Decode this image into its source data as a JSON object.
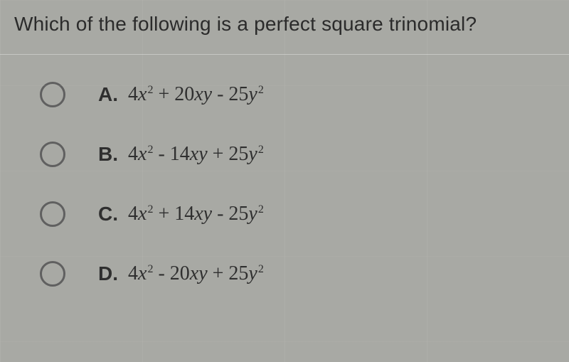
{
  "question": {
    "text": "Which of the following is a perfect square trinomial?",
    "font_size": 28,
    "text_color": "#2b2b2b"
  },
  "options": [
    {
      "letter": "A.",
      "coef1": "4",
      "var1": "x",
      "exp1": "2",
      "op1": " + ",
      "coef2": "20",
      "var2": "xy",
      "op2": " - ",
      "coef3": "25",
      "var3": "y",
      "exp3": "2",
      "selected": false
    },
    {
      "letter": "B.",
      "coef1": "4",
      "var1": "x",
      "exp1": "2",
      "op1": " - ",
      "coef2": "14",
      "var2": "xy",
      "op2": " + ",
      "coef3": "25",
      "var3": "y",
      "exp3": "2",
      "selected": false
    },
    {
      "letter": "C.",
      "coef1": "4",
      "var1": "x",
      "exp1": "2",
      "op1": " + ",
      "coef2": "14",
      "var2": "xy",
      "op2": " - ",
      "coef3": "25",
      "var3": "y",
      "exp3": "2",
      "selected": false
    },
    {
      "letter": "D.",
      "coef1": "4",
      "var1": "x",
      "exp1": "2",
      "op1": " - ",
      "coef2": "20",
      "var2": "xy",
      "op2": " + ",
      "coef3": "25",
      "var3": "y",
      "exp3": "2",
      "selected": false
    }
  ],
  "styling": {
    "background_color": "#a8a9a4",
    "radio_border_color": "#606060",
    "radio_size": 36,
    "option_font_size": 28,
    "option_text_color": "#2f2f2f",
    "letter_font_weight": "700",
    "expr_font_family": "Times New Roman",
    "row_spacing": 48,
    "divider_color": "rgba(255,255,255,0.35)"
  }
}
